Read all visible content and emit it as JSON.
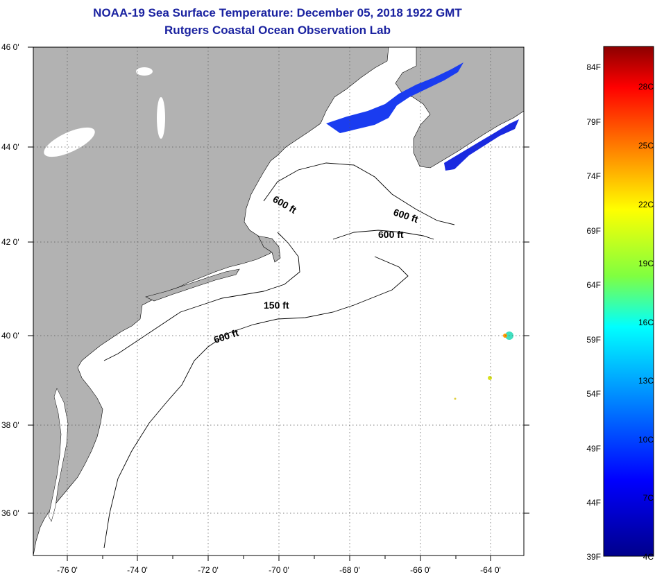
{
  "header": {
    "title": "NOAA-19 Sea Surface Temperature:  December 05, 2018 1922 GMT",
    "subtitle": "Rutgers Coastal Ocean Observation Lab"
  },
  "map": {
    "lon_range": [
      -77.0,
      -63.0
    ],
    "lat_range": [
      35.0,
      46.0
    ],
    "lon_ticks": [
      "-76 0'",
      "-74 0'",
      "-72 0'",
      "-70 0'",
      "-68 0'",
      "-66 0'",
      "-64 0'"
    ],
    "lat_ticks": [
      "46 0'",
      "44 0'",
      "42 0'",
      "40 0'",
      "38 0'",
      "36 0'"
    ],
    "grid": "dotted",
    "land_color": "#b2b2b2",
    "water_color": "#ffffff",
    "isobath_labels": [
      "600 ft",
      "600 ft",
      "600 ft",
      "150 ft",
      "600 ft"
    ]
  },
  "colorbar": {
    "fahrenheit_labels": [
      "84F",
      "79F",
      "74F",
      "69F",
      "64F",
      "59F",
      "54F",
      "49F",
      "44F",
      "39F"
    ],
    "celsius_labels": [
      "28C",
      "25C",
      "22C",
      "19C",
      "16C",
      "13C",
      "10C",
      "7C",
      "4C"
    ],
    "colors": [
      "#8b0000",
      "#ff0000",
      "#ff8000",
      "#ffff00",
      "#80ff40",
      "#00ffff",
      "#0080ff",
      "#0000ff",
      "#00008b"
    ]
  }
}
